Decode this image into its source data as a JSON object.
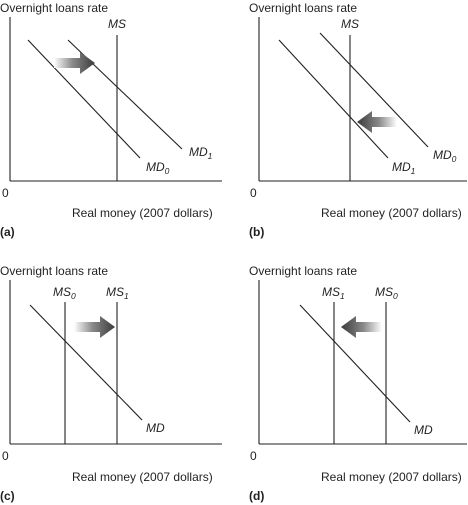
{
  "panels": [
    {
      "tag": "(a)",
      "y_axis_label": "Overnight loans rate",
      "x_axis_label": "Real money (2007 dollars)",
      "origin": "0",
      "curves": [
        {
          "base": "MS",
          "sub": ""
        },
        {
          "base": "MD",
          "sub": "0"
        },
        {
          "base": "MD",
          "sub": "1"
        }
      ],
      "arrow_direction": "right"
    },
    {
      "tag": "(b)",
      "y_axis_label": "Overnight loans rate",
      "x_axis_label": "Real money (2007 dollars)",
      "origin": "0",
      "curves": [
        {
          "base": "MS",
          "sub": ""
        },
        {
          "base": "MD",
          "sub": "0"
        },
        {
          "base": "MD",
          "sub": "1"
        }
      ],
      "arrow_direction": "left"
    },
    {
      "tag": "(c)",
      "y_axis_label": "Overnight loans rate",
      "x_axis_label": "Real money (2007 dollars)",
      "origin": "0",
      "curves": [
        {
          "base": "MS",
          "sub": "0"
        },
        {
          "base": "MS",
          "sub": "1"
        },
        {
          "base": "MD",
          "sub": ""
        }
      ],
      "arrow_direction": "right"
    },
    {
      "tag": "(d)",
      "y_axis_label": "Overnight loans rate",
      "x_axis_label": "Real money (2007 dollars)",
      "origin": "0",
      "curves": [
        {
          "base": "MS",
          "sub": "1"
        },
        {
          "base": "MS",
          "sub": "0"
        },
        {
          "base": "MD",
          "sub": ""
        }
      ],
      "arrow_direction": "left"
    }
  ]
}
